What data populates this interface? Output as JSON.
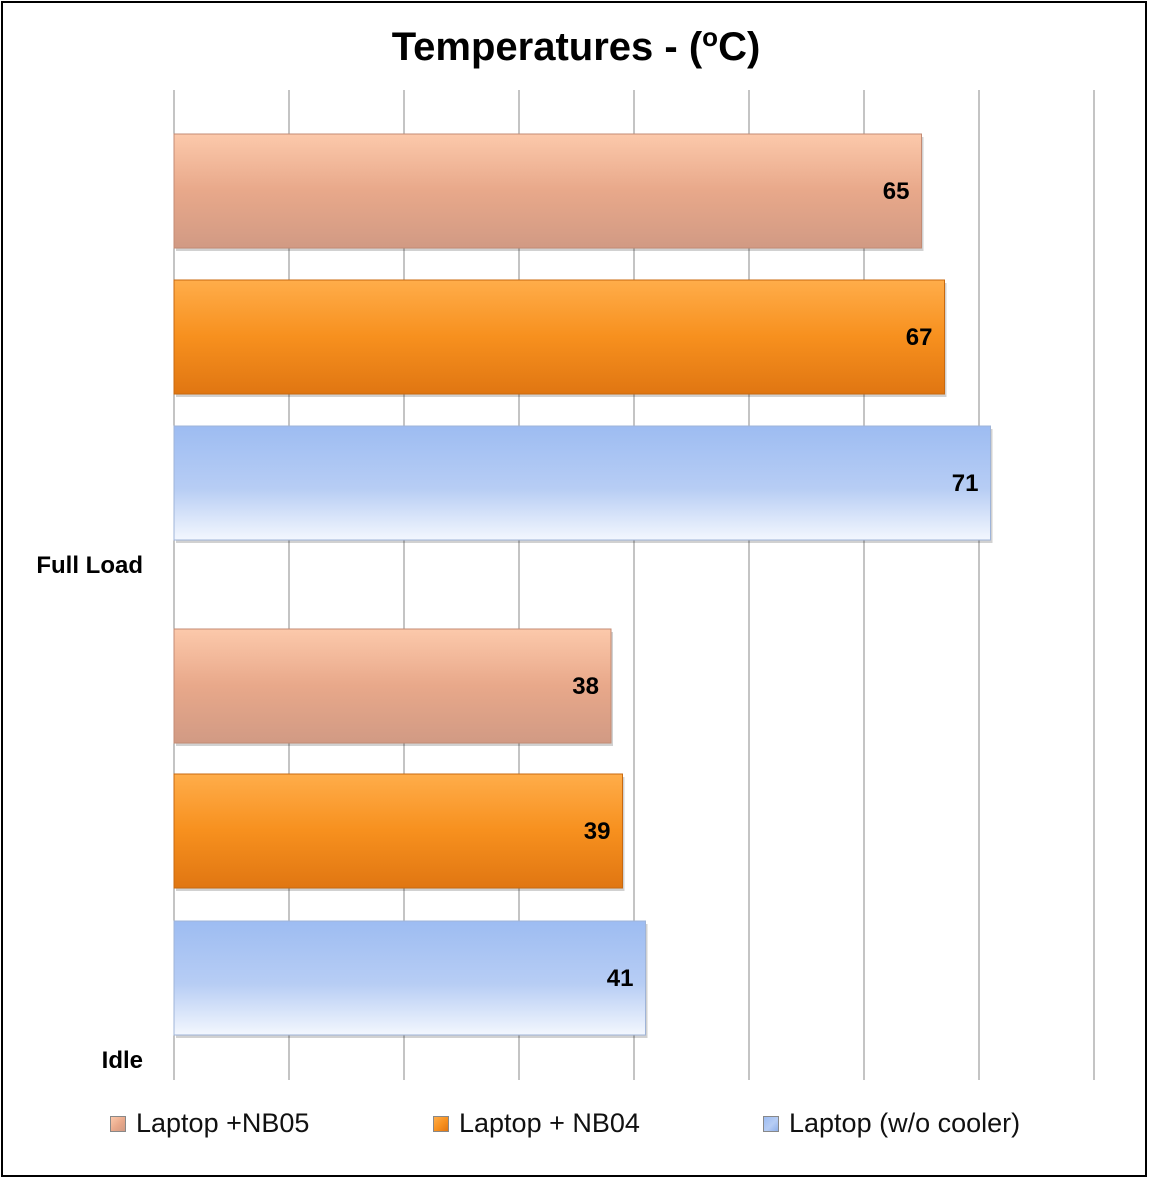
{
  "chart_data": {
    "type": "bar",
    "orientation": "horizontal",
    "title_main": "Temperatures - (",
    "title_sup": "o",
    "title_end": "C)",
    "categories": [
      "Full Load",
      "Idle"
    ],
    "series": [
      {
        "name": "Laptop +NB05",
        "values": [
          65,
          38
        ],
        "color": "#e8a88a",
        "color_light": "#fcc9ab",
        "color_dark": "#d19a84"
      },
      {
        "name": "Laptop + NB04",
        "values": [
          67,
          39
        ],
        "color": "#f7901e",
        "color_light": "#ffad4a",
        "color_dark": "#e07612"
      },
      {
        "name": "Laptop (w/o cooler)",
        "values": [
          71,
          41
        ],
        "color": "#b7cdf4",
        "color_light": "#9dbcf2",
        "color_dark": "#f3f7fe"
      }
    ],
    "xlim": [
      0,
      80
    ],
    "grid": true,
    "legend": "bottom"
  }
}
